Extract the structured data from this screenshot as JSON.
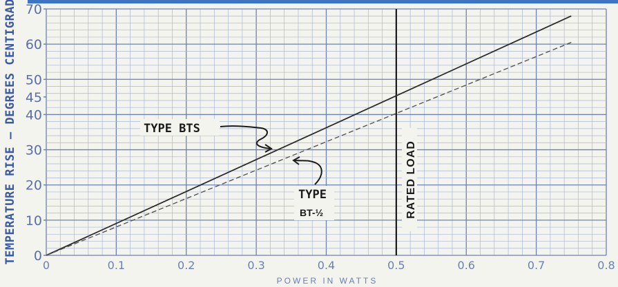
{
  "chart_data": {
    "type": "line",
    "xlabel": "POWER IN WATTS",
    "ylabel": "TEMPERATURE RISE — DEGREES CENTIGRADE",
    "xlim": [
      0,
      0.8
    ],
    "ylim": [
      0,
      70
    ],
    "x_ticks": [
      "0",
      "0.1",
      "0.2",
      "0.3",
      "0.4",
      "0.5",
      "0.6",
      "0.7",
      "0.8"
    ],
    "y_ticks": [
      "0",
      "10",
      "20",
      "30",
      "40",
      "45",
      "50",
      "60",
      "70"
    ],
    "grid": true,
    "series": [
      {
        "name": "TYPE BTS",
        "style": "solid",
        "x": [
          0,
          0.75
        ],
        "y": [
          0,
          68
        ]
      },
      {
        "name": "TYPE BT-½",
        "style": "dashed",
        "x": [
          0,
          0.75
        ],
        "y": [
          0,
          60.5
        ]
      }
    ],
    "annotations": {
      "bts_label": "TYPE BTS",
      "bt_label_line1": "TYPE",
      "bt_label_line2": "BT-½",
      "rated_load": "RATED LOAD",
      "rated_load_x": 0.5
    },
    "colors": {
      "grid_major": "#6b7fb4",
      "grid_minor": "#a9b6d6",
      "line": "#2b2b2b",
      "label_blue": "#3a5aa8",
      "top_band": "#3f74c4"
    }
  }
}
